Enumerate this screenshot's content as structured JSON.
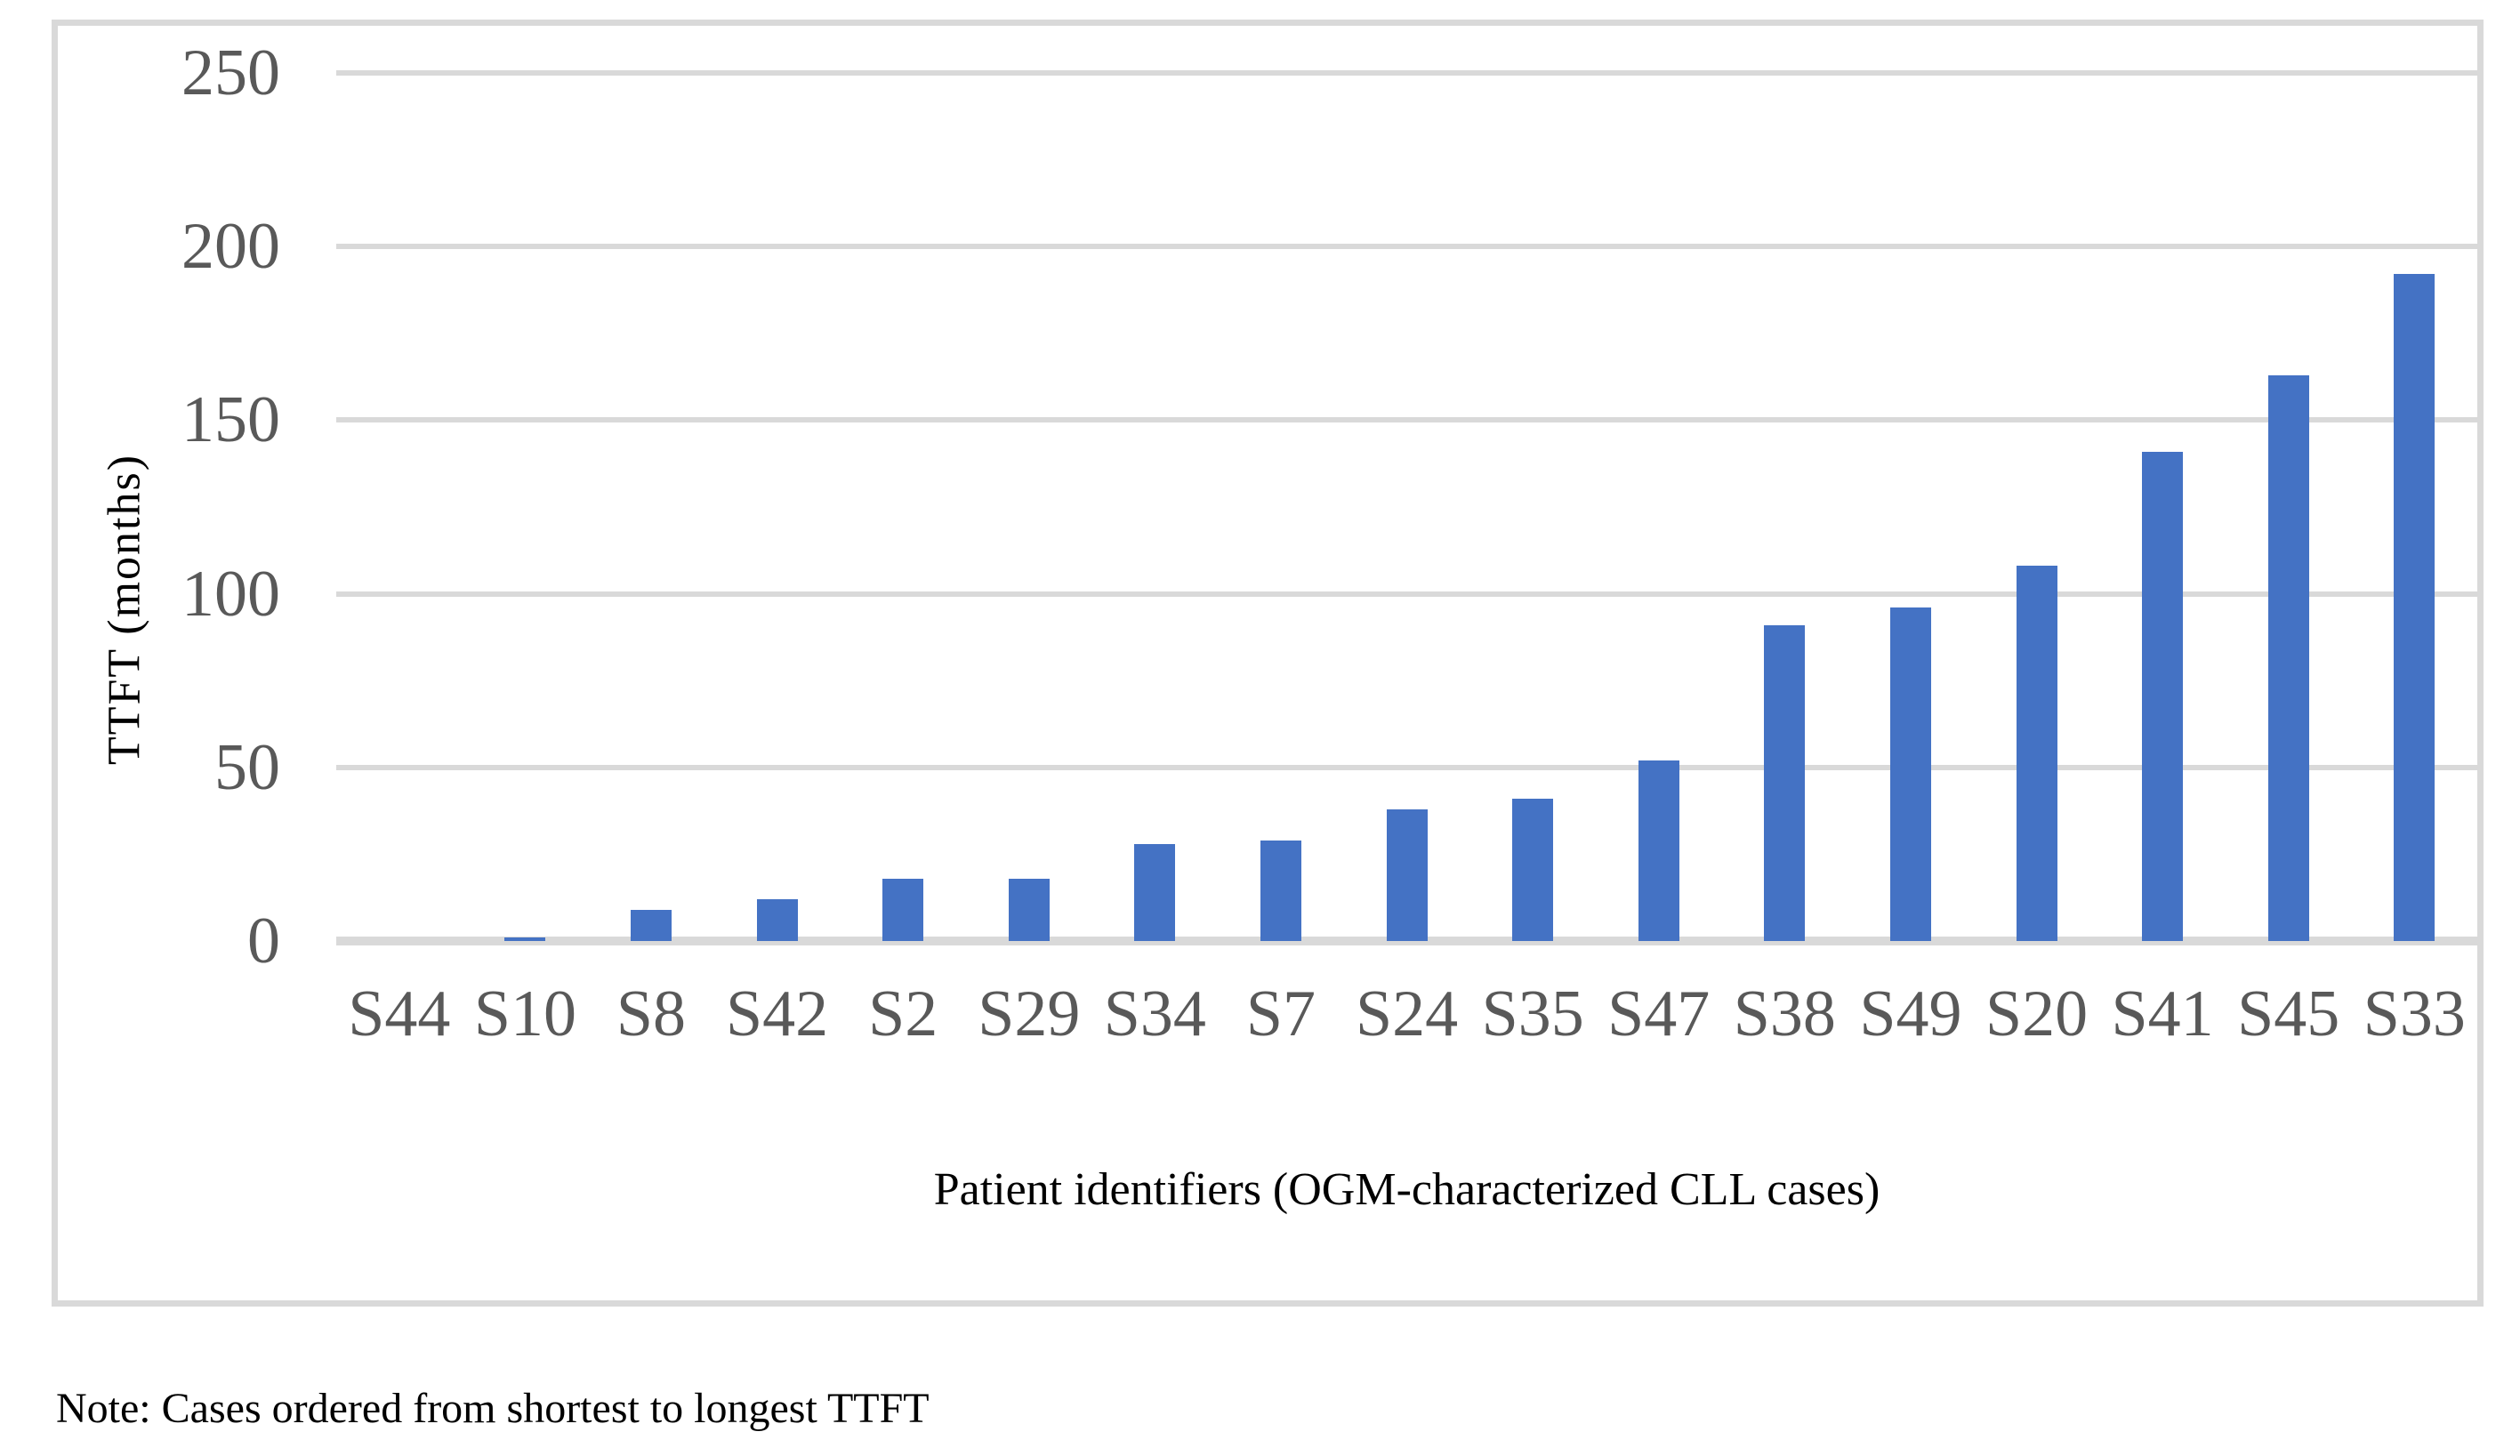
{
  "chart_data": {
    "type": "bar",
    "categories": [
      "S44",
      "S10",
      "S8",
      "S42",
      "S2",
      "S29",
      "S34",
      "S7",
      "S24",
      "S35",
      "S47",
      "S38",
      "S49",
      "S20",
      "S41",
      "S45",
      "S33"
    ],
    "values": [
      0,
      1,
      9,
      12,
      18,
      18,
      28,
      29,
      38,
      41,
      52,
      91,
      96,
      108,
      141,
      163,
      192
    ],
    "title": "",
    "xlabel": "Patient identifiers (OGM-characterized CLL cases)",
    "ylabel": "TTFT (months)",
    "ylim": [
      0,
      250
    ],
    "yticks": [
      0,
      50,
      100,
      150,
      200,
      250
    ],
    "grid": true,
    "legend": false,
    "bar_color": "#4472C4",
    "gridline_color": "#D9D9D9",
    "frame_border_color": "#D9D9D9",
    "tick_label_color": "#595959",
    "axis_title_color": "#000000"
  },
  "note": "Note: Cases ordered from shortest to longest TTFT"
}
